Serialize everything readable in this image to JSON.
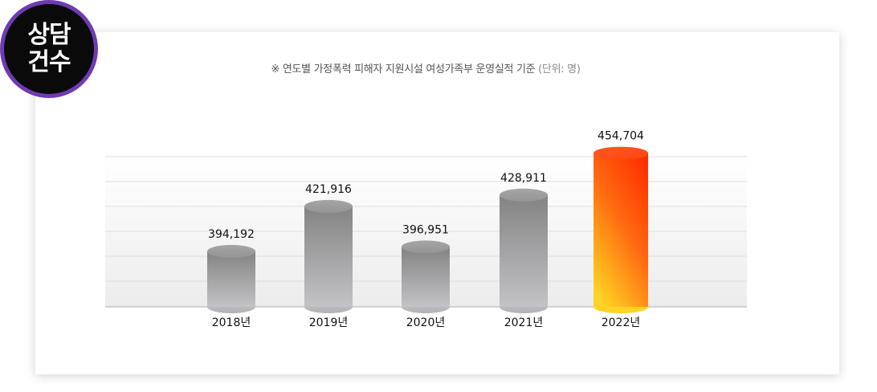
{
  "badge": {
    "line1": "상담",
    "line2": "건수"
  },
  "chart_title": {
    "main": "※ 연도별 가정폭력 피해자 지원시설 여성가족부 운영실적 기준",
    "unit": "(단위: 명)"
  },
  "chart_data": {
    "type": "bar",
    "title": "※ 연도별 가정폭력 피해자 지원시설 여성가족부 운영실적 기준 (단위: 명)",
    "categories": [
      "2018년",
      "2019년",
      "2020년",
      "2021년",
      "2022년"
    ],
    "values": [
      394192,
      421916,
      396951,
      428911,
      454704
    ],
    "value_labels": [
      "394,192",
      "421,916",
      "396,951",
      "428,911",
      "454,704"
    ],
    "highlight_index": 4,
    "xlabel": "",
    "ylabel": "",
    "grid": true
  },
  "colors": {
    "badge_ring": "#6f3bb3",
    "badge_fill": "#0a0a0a",
    "bar_gray_top": "#8a8a8a",
    "bar_gray_bottom": "#c4c4c8",
    "highlight_top": "#ff3a00",
    "highlight_bottom": "#ffd21f"
  }
}
